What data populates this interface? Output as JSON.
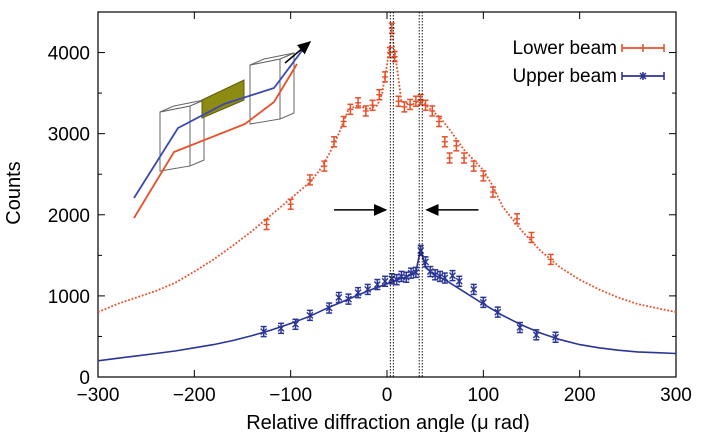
{
  "chart_data": {
    "type": "line",
    "xlabel": "Relative diffraction angle (μ rad)",
    "ylabel": "Counts",
    "xlim": [
      -300,
      300
    ],
    "ylim": [
      0,
      4500
    ],
    "x_ticks": [
      -300,
      -200,
      -100,
      0,
      100,
      200,
      300
    ],
    "x_tick_labels": [
      "−300",
      "−200",
      "−100",
      "0",
      "100",
      "200",
      "300"
    ],
    "y_ticks": [
      0,
      1000,
      2000,
      3000,
      4000
    ],
    "y_tick_labels": [
      "0",
      "1000",
      "2000",
      "3000",
      "4000"
    ],
    "legend_position": "top-right",
    "vertical_lines": [
      5,
      35
    ],
    "series": [
      {
        "name": "Lower beam",
        "color": "#e8502a",
        "line_style": "dotted",
        "fit": [
          [
            -300,
            800
          ],
          [
            -280,
            900
          ],
          [
            -260,
            980
          ],
          [
            -240,
            1060
          ],
          [
            -220,
            1160
          ],
          [
            -200,
            1300
          ],
          [
            -180,
            1450
          ],
          [
            -160,
            1620
          ],
          [
            -140,
            1800
          ],
          [
            -120,
            2000
          ],
          [
            -100,
            2200
          ],
          [
            -80,
            2400
          ],
          [
            -70,
            2550
          ],
          [
            -60,
            2750
          ],
          [
            -50,
            3000
          ],
          [
            -40,
            3300
          ],
          [
            -30,
            3350
          ],
          [
            -20,
            3300
          ],
          [
            -10,
            3350
          ],
          [
            -5,
            3500
          ],
          [
            0,
            3850
          ],
          [
            5,
            4250
          ],
          [
            10,
            3850
          ],
          [
            15,
            3400
          ],
          [
            25,
            3350
          ],
          [
            35,
            3420
          ],
          [
            45,
            3300
          ],
          [
            55,
            3200
          ],
          [
            65,
            3050
          ],
          [
            80,
            2800
          ],
          [
            100,
            2550
          ],
          [
            110,
            2350
          ],
          [
            120,
            2100
          ],
          [
            140,
            1800
          ],
          [
            160,
            1550
          ],
          [
            180,
            1350
          ],
          [
            200,
            1200
          ],
          [
            220,
            1080
          ],
          [
            240,
            980
          ],
          [
            260,
            900
          ],
          [
            280,
            850
          ],
          [
            300,
            800
          ]
        ],
        "points": [
          [
            -125,
            1880
          ],
          [
            -100,
            2130
          ],
          [
            -80,
            2430
          ],
          [
            -65,
            2600
          ],
          [
            -55,
            2900
          ],
          [
            -45,
            3150
          ],
          [
            -38,
            3300
          ],
          [
            -30,
            3380
          ],
          [
            -22,
            3280
          ],
          [
            -15,
            3350
          ],
          [
            -8,
            3480
          ],
          [
            -2,
            3700
          ],
          [
            3,
            4000
          ],
          [
            5,
            4300
          ],
          [
            8,
            3950
          ],
          [
            12,
            3400
          ],
          [
            18,
            3330
          ],
          [
            24,
            3360
          ],
          [
            30,
            3400
          ],
          [
            35,
            3420
          ],
          [
            40,
            3350
          ],
          [
            47,
            3280
          ],
          [
            54,
            3150
          ],
          [
            60,
            2900
          ],
          [
            65,
            2700
          ],
          [
            72,
            2850
          ],
          [
            80,
            2700
          ],
          [
            90,
            2600
          ],
          [
            100,
            2480
          ],
          [
            110,
            2280
          ],
          [
            135,
            1950
          ],
          [
            150,
            1720
          ],
          [
            170,
            1450
          ]
        ]
      },
      {
        "name": "Upper beam",
        "color": "#2b3596",
        "line_style": "solid",
        "fit": [
          [
            -300,
            200
          ],
          [
            -280,
            230
          ],
          [
            -260,
            260
          ],
          [
            -240,
            290
          ],
          [
            -220,
            320
          ],
          [
            -200,
            360
          ],
          [
            -180,
            400
          ],
          [
            -160,
            450
          ],
          [
            -140,
            510
          ],
          [
            -120,
            580
          ],
          [
            -100,
            660
          ],
          [
            -80,
            750
          ],
          [
            -60,
            860
          ],
          [
            -40,
            960
          ],
          [
            -20,
            1060
          ],
          [
            0,
            1150
          ],
          [
            10,
            1200
          ],
          [
            20,
            1230
          ],
          [
            30,
            1300
          ],
          [
            35,
            1580
          ],
          [
            40,
            1350
          ],
          [
            50,
            1250
          ],
          [
            60,
            1200
          ],
          [
            80,
            1050
          ],
          [
            100,
            900
          ],
          [
            120,
            760
          ],
          [
            140,
            640
          ],
          [
            160,
            540
          ],
          [
            180,
            460
          ],
          [
            200,
            400
          ],
          [
            220,
            360
          ],
          [
            240,
            330
          ],
          [
            260,
            310
          ],
          [
            280,
            300
          ],
          [
            300,
            290
          ]
        ],
        "points": [
          [
            -128,
            560
          ],
          [
            -110,
            600
          ],
          [
            -95,
            650
          ],
          [
            -80,
            760
          ],
          [
            -60,
            850
          ],
          [
            -50,
            980
          ],
          [
            -40,
            960
          ],
          [
            -30,
            1040
          ],
          [
            -20,
            1080
          ],
          [
            -10,
            1140
          ],
          [
            -2,
            1180
          ],
          [
            5,
            1210
          ],
          [
            10,
            1200
          ],
          [
            15,
            1240
          ],
          [
            20,
            1230
          ],
          [
            25,
            1280
          ],
          [
            30,
            1290
          ],
          [
            35,
            1560
          ],
          [
            40,
            1420
          ],
          [
            45,
            1300
          ],
          [
            50,
            1260
          ],
          [
            55,
            1240
          ],
          [
            60,
            1220
          ],
          [
            68,
            1250
          ],
          [
            75,
            1180
          ],
          [
            90,
            1080
          ],
          [
            100,
            920
          ],
          [
            115,
            800
          ],
          [
            138,
            610
          ],
          [
            155,
            520
          ],
          [
            175,
            490
          ]
        ]
      }
    ],
    "annotations": {
      "arrows": [
        "left arrow pointing right toward x = 5",
        "right arrow pointing left toward x = 35"
      ],
      "inset": "schematic of two beams passing through two crystal blocks with a filter"
    }
  }
}
